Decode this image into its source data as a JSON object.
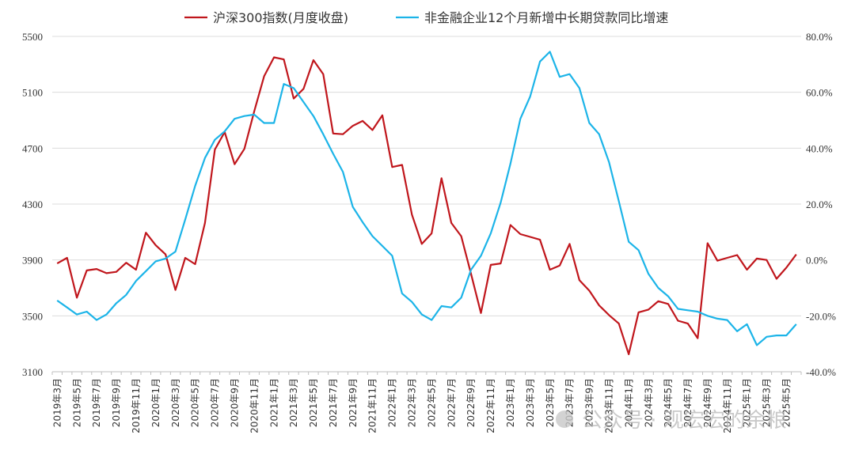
{
  "chart_data": {
    "type": "line",
    "legend": "top",
    "grid": true,
    "x": [
      "2019年3月",
      "2019年4月",
      "2019年5月",
      "2019年6月",
      "2019年7月",
      "2019年8月",
      "2019年9月",
      "2019年10月",
      "2019年11月",
      "2019年12月",
      "2020年1月",
      "2020年2月",
      "2020年3月",
      "2020年4月",
      "2020年5月",
      "2020年6月",
      "2020年7月",
      "2020年8月",
      "2020年9月",
      "2020年10月",
      "2020年11月",
      "2020年12月",
      "2021年1月",
      "2021年2月",
      "2021年3月",
      "2021年4月",
      "2021年5月",
      "2021年6月",
      "2021年7月",
      "2021年8月",
      "2021年9月",
      "2021年10月",
      "2021年11月",
      "2021年12月",
      "2022年1月",
      "2022年2月",
      "2022年3月",
      "2022年4月",
      "2022年5月",
      "2022年6月",
      "2022年7月",
      "2022年8月",
      "2022年9月",
      "2022年10月",
      "2022年11月",
      "2022年12月",
      "2023年1月",
      "2023年2月",
      "2023年3月",
      "2023年4月",
      "2023年5月",
      "2023年6月",
      "2023年7月",
      "2023年8月",
      "2023年9月",
      "2023年10月",
      "2023年11月",
      "2023年12月",
      "2024年1月",
      "2024年2月",
      "2024年3月",
      "2024年4月",
      "2024年5月",
      "2024年6月",
      "2024年7月",
      "2024年8月",
      "2024年9月",
      "2024年10月",
      "2024年11月",
      "2024年12月",
      "2025年1月",
      "2025年2月",
      "2025年3月",
      "2025年4月",
      "2025年5月",
      "2025年6月"
    ],
    "xticks": [
      "2019年3月",
      "2019年5月",
      "2019年7月",
      "2019年9月",
      "2019年11月",
      "2020年1月",
      "2020年3月",
      "2020年5月",
      "2020年7月",
      "2020年9月",
      "2020年11月",
      "2021年1月",
      "2021年3月",
      "2021年5月",
      "2021年7月",
      "2021年9月",
      "2021年11月",
      "2022年1月",
      "2022年3月",
      "2022年5月",
      "2022年7月",
      "2022年9月",
      "2022年11月",
      "2023年1月",
      "2023年3月",
      "2023年5月",
      "2023年7月",
      "2023年9月",
      "2023年11月",
      "2024年1月",
      "2024年3月",
      "2024年5月",
      "2024年7月",
      "2024年9月",
      "2024年11月",
      "2025年1月",
      "2025年3月",
      "2025年5月"
    ],
    "y_left": {
      "ylim": [
        3100,
        5500
      ],
      "ticks": [
        "3100",
        "3500",
        "3900",
        "4300",
        "4700",
        "5100",
        "5500"
      ]
    },
    "y_right": {
      "ylim": [
        -40,
        80
      ],
      "ticks": [
        "-40.0%",
        "-20.0%",
        "0.0%",
        "20.0%",
        "40.0%",
        "60.0%",
        "80.0%"
      ]
    },
    "series": [
      {
        "name": "沪深300指数(月度收盘)",
        "axis": "left",
        "color": "#c0161c",
        "values": [
          3875,
          3915,
          3630,
          3825,
          3835,
          3805,
          3815,
          3880,
          3830,
          4095,
          4005,
          3940,
          3685,
          3915,
          3870,
          4165,
          4690,
          4815,
          4585,
          4695,
          4965,
          5215,
          5350,
          5335,
          5055,
          5125,
          5330,
          5230,
          4805,
          4800,
          4860,
          4895,
          4830,
          4935,
          4565,
          4580,
          4225,
          4015,
          4090,
          4485,
          4165,
          4070,
          3800,
          3520,
          3865,
          3875,
          4150,
          4085,
          4065,
          4045,
          3830,
          3860,
          4015,
          3755,
          3680,
          3575,
          3505,
          3445,
          3225,
          3525,
          3545,
          3605,
          3585,
          3465,
          3445,
          3340,
          4020,
          3895,
          3915,
          3935,
          3830,
          3910,
          3900,
          3765,
          3845,
          3940
        ]
      },
      {
        "name": "非金融企业12个月新增中长期贷款同比增速",
        "axis": "right",
        "color": "#1cb4e8",
        "values": [
          -14.5,
          -17.0,
          -19.5,
          -18.5,
          -21.5,
          -19.5,
          -15.5,
          -12.5,
          -7.5,
          -4.0,
          -0.5,
          0.5,
          3.0,
          14.5,
          26.5,
          36.5,
          43.0,
          46.0,
          50.5,
          51.5,
          52.0,
          49.0,
          49.0,
          63.0,
          61.5,
          56.5,
          51.5,
          45.0,
          38.0,
          31.5,
          19.0,
          13.5,
          8.5,
          5.0,
          1.5,
          -12.0,
          -15.0,
          -19.5,
          -21.5,
          -16.5,
          -17.0,
          -13.5,
          -3.5,
          1.5,
          9.5,
          20.5,
          34.5,
          50.5,
          58.5,
          71.0,
          74.5,
          65.5,
          66.5,
          61.5,
          49.0,
          45.0,
          35.0,
          21.0,
          6.5,
          3.5,
          -5.0,
          -10.0,
          -13.0,
          -17.5,
          -18.0,
          -18.5,
          -20.0,
          -21.0,
          -21.5,
          -25.5,
          -23.0,
          -30.5,
          -27.5,
          -27.0,
          -27.0,
          -23.0
        ]
      }
    ]
  },
  "watermark": "公众号 · 观宏宏的余粮"
}
